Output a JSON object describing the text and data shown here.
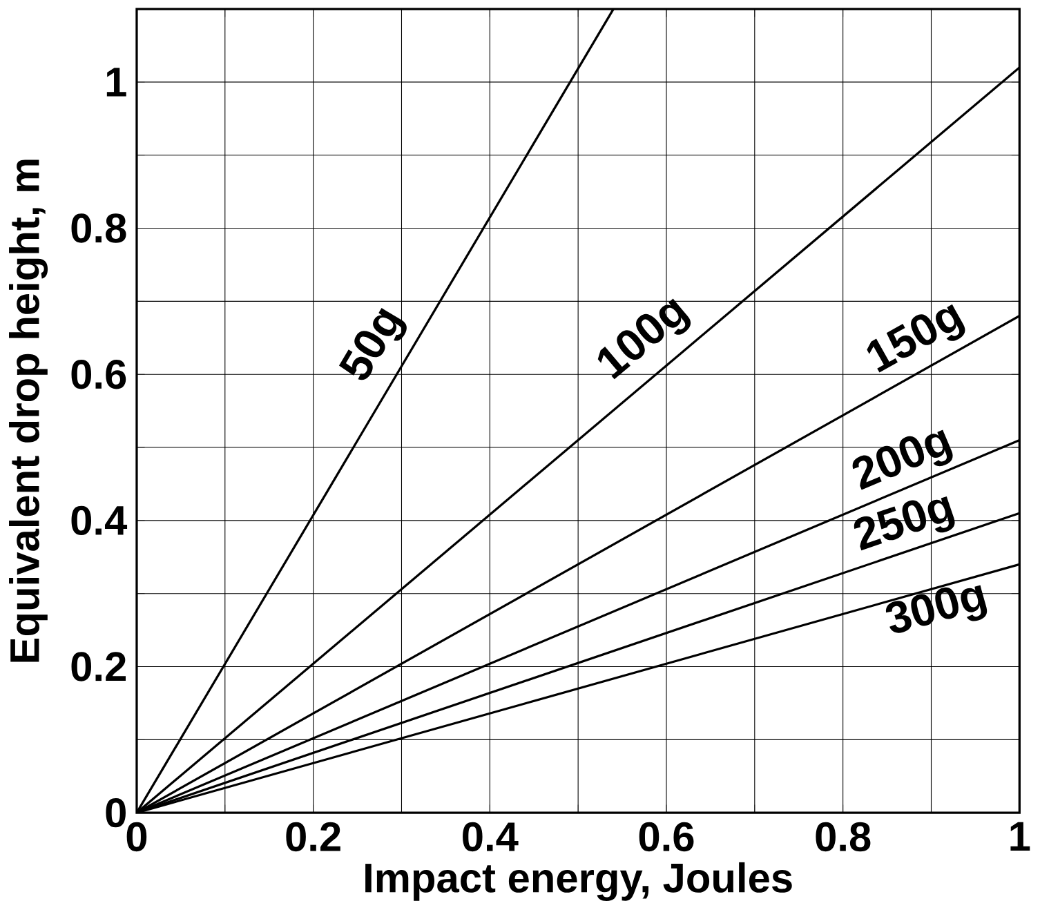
{
  "chart_data": {
    "type": "line",
    "xlabel": "Impact energy, Joules",
    "ylabel": "Equivalent drop height, m",
    "xlim": [
      0,
      1
    ],
    "ylim": [
      0,
      1.1
    ],
    "xticks": [
      0,
      {
        "value": 0.1,
        "label": null
      },
      0.2,
      {
        "value": 0.3,
        "label": null
      },
      0.4,
      {
        "value": 0.5,
        "label": null
      },
      0.6,
      {
        "value": 0.7,
        "label": null
      },
      0.8,
      {
        "value": 0.9,
        "label": null
      },
      1
    ],
    "yticks": [
      0,
      {
        "value": 0.1,
        "label": null
      },
      0.2,
      {
        "value": 0.3,
        "label": null
      },
      0.4,
      {
        "value": 0.5,
        "label": null
      },
      0.6,
      {
        "value": 0.7,
        "label": null
      },
      0.8,
      {
        "value": 0.9,
        "label": null
      },
      1,
      {
        "value": 1.1,
        "label": null
      }
    ],
    "grid": true,
    "legend": "right",
    "marker": "none",
    "line_style": "solid",
    "series": [
      {
        "name": "50g",
        "color": "#000000",
        "x": [
          0,
          0.54
        ],
        "values": [
          0,
          1.1
        ]
      },
      {
        "name": "100g",
        "color": "#000000",
        "x": [
          0,
          1
        ],
        "values": [
          0,
          1.02
        ]
      },
      {
        "name": "150g",
        "color": "#000000",
        "x": [
          0,
          1
        ],
        "values": [
          0,
          0.68
        ]
      },
      {
        "name": "200g",
        "color": "#000000",
        "x": [
          0,
          1
        ],
        "values": [
          0,
          0.51
        ]
      },
      {
        "name": "250g",
        "color": "#000000",
        "x": [
          0,
          1
        ],
        "values": [
          0,
          0.41
        ]
      },
      {
        "name": "300g",
        "color": "#000000",
        "x": [
          0,
          1
        ],
        "values": [
          0,
          0.34
        ]
      }
    ]
  }
}
